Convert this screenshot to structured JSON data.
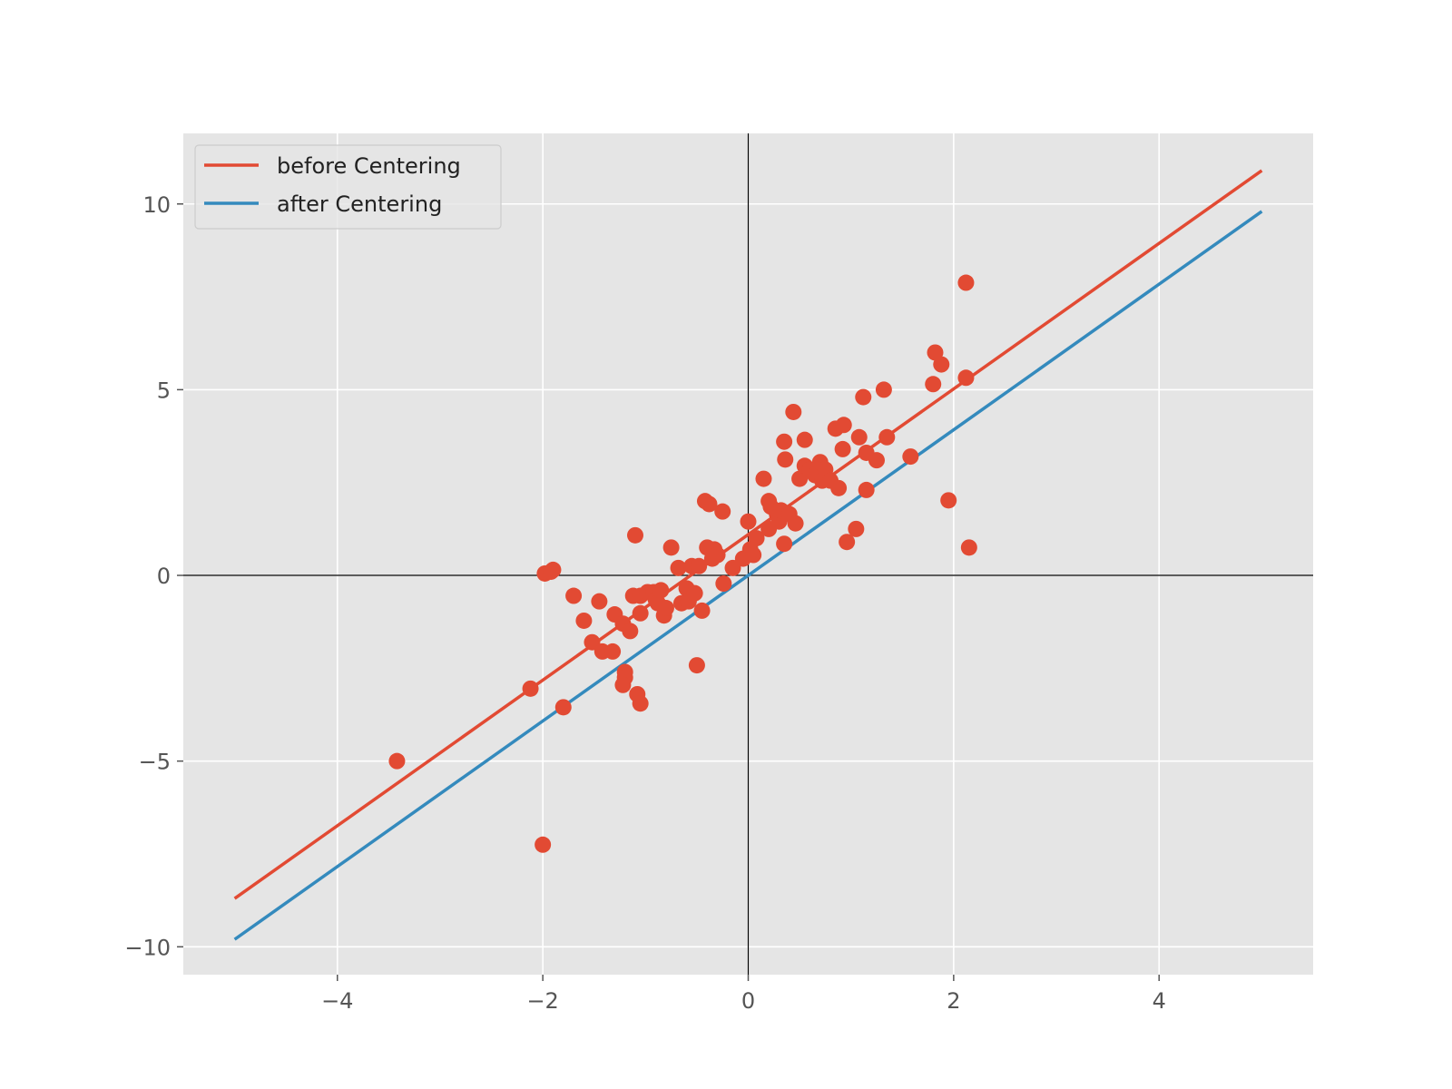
{
  "chart_data": {
    "type": "scatter",
    "title": "",
    "xlabel": "",
    "ylabel": "",
    "xlim": [
      -5.5,
      5.5
    ],
    "ylim": [
      -10.75,
      11.9
    ],
    "xticks": [
      -4,
      -2,
      0,
      2,
      4
    ],
    "yticks": [
      -10,
      -5,
      0,
      5,
      10
    ],
    "xtick_labels": [
      "−4",
      "−2",
      "0",
      "2",
      "4"
    ],
    "ytick_labels": [
      "−10",
      "−5",
      "0",
      "5",
      "10"
    ],
    "grid": true,
    "background": "#e5e5e5",
    "grid_color": "#ffffff",
    "axis_lines": {
      "x0": true,
      "y0": true,
      "color": "#000000"
    },
    "legend_position": "top-left",
    "lines": [
      {
        "name": "before Centering",
        "color": "#e24a33",
        "x": [
          -5,
          5
        ],
        "y": [
          -8.7,
          10.9
        ]
      },
      {
        "name": "after Centering",
        "color": "#348abd",
        "x": [
          -5,
          5
        ],
        "y": [
          -9.8,
          9.8
        ]
      }
    ],
    "scatter": {
      "color": "#e24a33",
      "points": [
        [
          -3.42,
          -5.0
        ],
        [
          -2.0,
          -7.25
        ],
        [
          -2.12,
          -3.05
        ],
        [
          -1.8,
          -3.55
        ],
        [
          -1.98,
          0.05
        ],
        [
          -1.92,
          0.1
        ],
        [
          -1.9,
          0.15
        ],
        [
          -1.7,
          -0.55
        ],
        [
          -1.6,
          -1.22
        ],
        [
          -1.52,
          -1.8
        ],
        [
          -1.45,
          -0.7
        ],
        [
          -1.42,
          -2.05
        ],
        [
          -1.32,
          -2.05
        ],
        [
          -1.3,
          -1.05
        ],
        [
          -1.22,
          -1.3
        ],
        [
          -1.2,
          -2.6
        ],
        [
          -1.2,
          -2.75
        ],
        [
          -1.22,
          -2.95
        ],
        [
          -1.15,
          -1.5
        ],
        [
          -1.12,
          -0.55
        ],
        [
          -1.1,
          1.08
        ],
        [
          -1.08,
          -3.2
        ],
        [
          -1.05,
          -3.45
        ],
        [
          -1.05,
          -1.02
        ],
        [
          -1.05,
          -0.55
        ],
        [
          -0.98,
          -0.45
        ],
        [
          -0.92,
          -0.45
        ],
        [
          -0.9,
          -0.65
        ],
        [
          -0.88,
          -0.75
        ],
        [
          -0.85,
          -0.4
        ],
        [
          -0.82,
          -1.08
        ],
        [
          -0.8,
          -0.88
        ],
        [
          -0.75,
          0.75
        ],
        [
          -0.68,
          0.2
        ],
        [
          -0.65,
          -0.75
        ],
        [
          -0.6,
          -0.35
        ],
        [
          -0.58,
          -0.7
        ],
        [
          -0.55,
          0.25
        ],
        [
          -0.52,
          -0.48
        ],
        [
          -0.5,
          -2.42
        ],
        [
          -0.48,
          0.25
        ],
        [
          -0.45,
          -0.95
        ],
        [
          -0.42,
          2.0
        ],
        [
          -0.4,
          0.75
        ],
        [
          -0.38,
          1.92
        ],
        [
          -0.35,
          0.45
        ],
        [
          -0.33,
          0.7
        ],
        [
          -0.3,
          0.55
        ],
        [
          -0.25,
          1.72
        ],
        [
          -0.24,
          -0.22
        ],
        [
          -0.15,
          0.2
        ],
        [
          -0.05,
          0.45
        ],
        [
          0.0,
          1.45
        ],
        [
          0.02,
          0.7
        ],
        [
          0.05,
          0.55
        ],
        [
          0.08,
          1.0
        ],
        [
          0.15,
          2.6
        ],
        [
          0.2,
          2.0
        ],
        [
          0.2,
          1.25
        ],
        [
          0.22,
          1.85
        ],
        [
          0.28,
          1.65
        ],
        [
          0.3,
          1.45
        ],
        [
          0.32,
          1.75
        ],
        [
          0.35,
          3.6
        ],
        [
          0.35,
          0.85
        ],
        [
          0.36,
          3.12
        ],
        [
          0.4,
          1.65
        ],
        [
          0.44,
          4.4
        ],
        [
          0.46,
          1.4
        ],
        [
          0.5,
          2.6
        ],
        [
          0.55,
          3.65
        ],
        [
          0.55,
          2.95
        ],
        [
          0.6,
          2.85
        ],
        [
          0.65,
          2.7
        ],
        [
          0.7,
          3.05
        ],
        [
          0.72,
          2.55
        ],
        [
          0.75,
          2.85
        ],
        [
          0.8,
          2.55
        ],
        [
          0.85,
          3.95
        ],
        [
          0.88,
          2.35
        ],
        [
          0.92,
          3.4
        ],
        [
          0.93,
          4.05
        ],
        [
          0.96,
          0.9
        ],
        [
          1.05,
          1.25
        ],
        [
          1.08,
          3.72
        ],
        [
          1.12,
          4.8
        ],
        [
          1.15,
          3.3
        ],
        [
          1.15,
          2.3
        ],
        [
          1.25,
          3.1
        ],
        [
          1.32,
          5.0
        ],
        [
          1.35,
          3.72
        ],
        [
          1.58,
          3.2
        ],
        [
          1.8,
          5.15
        ],
        [
          1.82,
          6.0
        ],
        [
          1.88,
          5.68
        ],
        [
          1.95,
          2.02
        ],
        [
          2.12,
          7.88
        ],
        [
          2.12,
          5.32
        ],
        [
          2.15,
          0.75
        ]
      ]
    }
  }
}
